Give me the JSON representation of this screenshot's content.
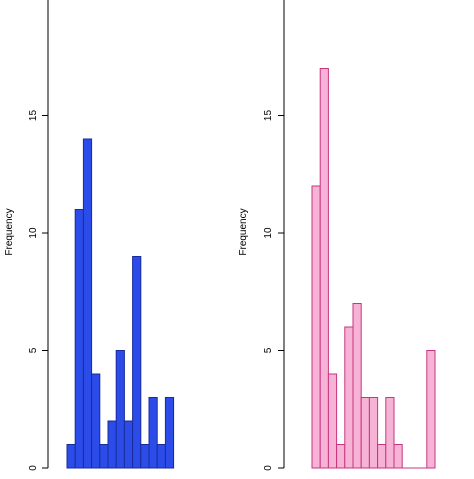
{
  "chart_data": [
    {
      "type": "bar",
      "ylabel": "Frequency",
      "ylim": [
        0,
        20
      ],
      "yticks": [
        0,
        5,
        10,
        15
      ],
      "grid": false,
      "legend": "none",
      "fill_color": "#2b4ce8",
      "stroke_color": "#1a2c9a",
      "values": [
        1,
        11,
        14,
        4,
        1,
        2,
        5,
        2,
        9,
        1,
        3,
        1,
        3
      ]
    },
    {
      "type": "bar",
      "ylabel": "Frequency",
      "ylim": [
        0,
        20
      ],
      "yticks": [
        0,
        5,
        10,
        15
      ],
      "grid": false,
      "legend": "none",
      "fill_color": "#f7b3d6",
      "stroke_color": "#c7357f",
      "values": [
        12,
        17,
        4,
        1,
        6,
        7,
        3,
        3,
        1,
        3,
        1,
        0,
        0,
        0,
        5
      ]
    }
  ]
}
